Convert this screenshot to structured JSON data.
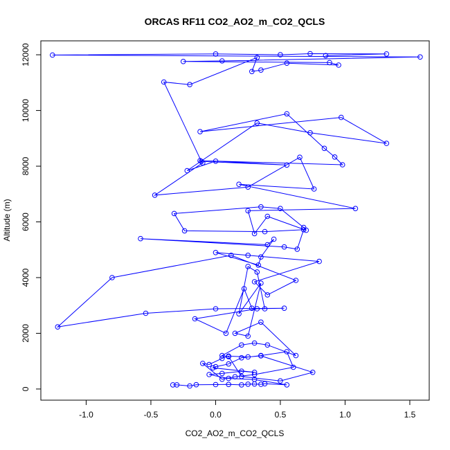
{
  "chart_data": {
    "type": "line",
    "title": "ORCAS RF11 CO2_AO2_m_CO2_QCLS",
    "xlabel": "CO2_AO2_m_CO2_QCLS",
    "ylabel": "Altitude (m)",
    "xlim": [
      -1.35,
      1.65
    ],
    "ylim": [
      -400,
      12500
    ],
    "xticks": [
      -1.0,
      -0.5,
      0.0,
      0.5,
      1.0,
      1.5
    ],
    "xtick_labels": [
      "-1.0",
      "-0.5",
      "0.0",
      "0.5",
      "1.0",
      "1.5"
    ],
    "yticks": [
      0,
      2000,
      4000,
      6000,
      8000,
      10000,
      12000
    ],
    "ytick_labels": [
      "0",
      "2000",
      "4000",
      "6000",
      "8000",
      "10000",
      "12000"
    ],
    "grid": false,
    "legend": "none",
    "series_color": "#0000ff",
    "marker": "open-circle",
    "series": [
      {
        "x": [
          -0.33,
          -0.3,
          -0.2,
          -0.15,
          0.0,
          0.1,
          0.2,
          0.25,
          0.3,
          0.35,
          0.38,
          0.55,
          0.3,
          0.1,
          -0.05,
          0.05,
          0.2,
          0.3,
          -0.02,
          0.0,
          0.1,
          0.2,
          0.35,
          0.55,
          0.6,
          0.3,
          0.15,
          0.05,
          -0.1,
          -0.05,
          0.05,
          0.1,
          0.25,
          0.35,
          0.75,
          0.5,
          0.2,
          0.1,
          0.05,
          0.2,
          0.3,
          0.4,
          0.62,
          0.35,
          0.15,
          0.25,
          0.35,
          0.18,
          0.25,
          0.32,
          0.38,
          0.28,
          0.22,
          0.08,
          -0.16,
          0.32,
          0.53,
          0.0,
          -0.54,
          -1.22,
          -0.8,
          0.12,
          0.62,
          0.4,
          0.3,
          0.8,
          0.25,
          0.0,
          0.33,
          0.35,
          0.45,
          0.4,
          -0.58,
          0.53,
          0.63,
          0.68,
          0.38,
          -0.24,
          -0.32,
          0.35,
          0.5,
          0.68,
          0.7,
          0.4,
          0.3,
          0.25,
          1.08,
          0.18,
          0.76,
          0.65,
          0.25,
          -0.47,
          -0.1,
          -0.12,
          0.98,
          0.92,
          0.84,
          0.55,
          -0.12,
          0.97,
          1.32,
          0.73,
          0.32,
          -0.22,
          0.0,
          0.55,
          -0.11,
          -0.4,
          -0.2,
          0.32,
          0.28,
          0.35,
          0.55,
          0.95,
          0.88,
          -0.25,
          0.05,
          1.58,
          -1.26,
          0.0,
          0.5,
          0.73,
          1.32,
          0.85
        ],
        "y": [
          150,
          150,
          110,
          155,
          160,
          165,
          150,
          175,
          180,
          170,
          190,
          150,
          340,
          380,
          520,
          560,
          640,
          600,
          760,
          800,
          900,
          1120,
          1200,
          1340,
          780,
          520,
          440,
          350,
          920,
          880,
          1100,
          1180,
          1150,
          1190,
          600,
          290,
          450,
          1160,
          1200,
          1580,
          1650,
          1580,
          1200,
          2400,
          2000,
          1900,
          3800,
          2700,
          4400,
          4200,
          2880,
          2900,
          3600,
          2000,
          2520,
          2880,
          2900,
          2880,
          2720,
          2230,
          4000,
          4800,
          3900,
          3380,
          3850,
          4580,
          4800,
          4900,
          4450,
          4740,
          5380,
          5180,
          5400,
          5100,
          5020,
          5720,
          5650,
          5680,
          6300,
          6540,
          6480,
          5800,
          5700,
          6200,
          5580,
          6400,
          6480,
          7350,
          7180,
          8320,
          7250,
          6960,
          8120,
          8200,
          8050,
          8330,
          8640,
          9880,
          9240,
          9750,
          8820,
          9200,
          9550,
          7840,
          8180,
          8040,
          8170,
          11020,
          10930,
          11900,
          11400,
          11450,
          11700,
          11630,
          11720,
          11760,
          11780,
          11920,
          11990,
          12030,
          12000,
          12040,
          12030,
          11970
        ]
      }
    ]
  }
}
